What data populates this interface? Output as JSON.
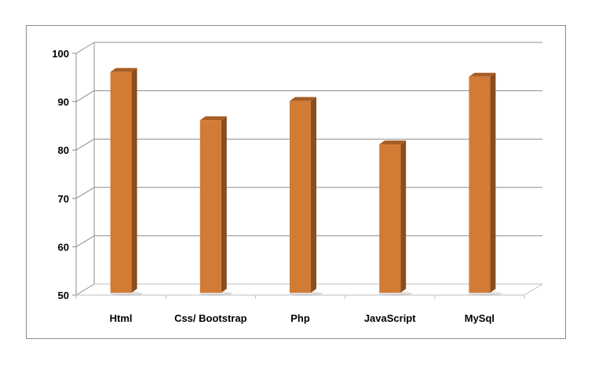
{
  "chart_data": {
    "type": "bar",
    "style": "3d-column",
    "categories": [
      "Html",
      "Css/ Bootstrap",
      "Php",
      "JavaScript",
      "MySql"
    ],
    "values": [
      96,
      86,
      90,
      81,
      95
    ],
    "title": "",
    "xlabel": "",
    "ylabel": "",
    "ylim": [
      50,
      100
    ],
    "yticks": [
      "50",
      "60",
      "70",
      "80",
      "90",
      "100"
    ],
    "grid": true,
    "legend": "none",
    "colors": {
      "bar_front": "#d27b35",
      "bar_side": "#8a4d1d",
      "bar_top": "#a65e25",
      "grid": "#8c8c8c",
      "floor": "#bfbfbf"
    }
  }
}
